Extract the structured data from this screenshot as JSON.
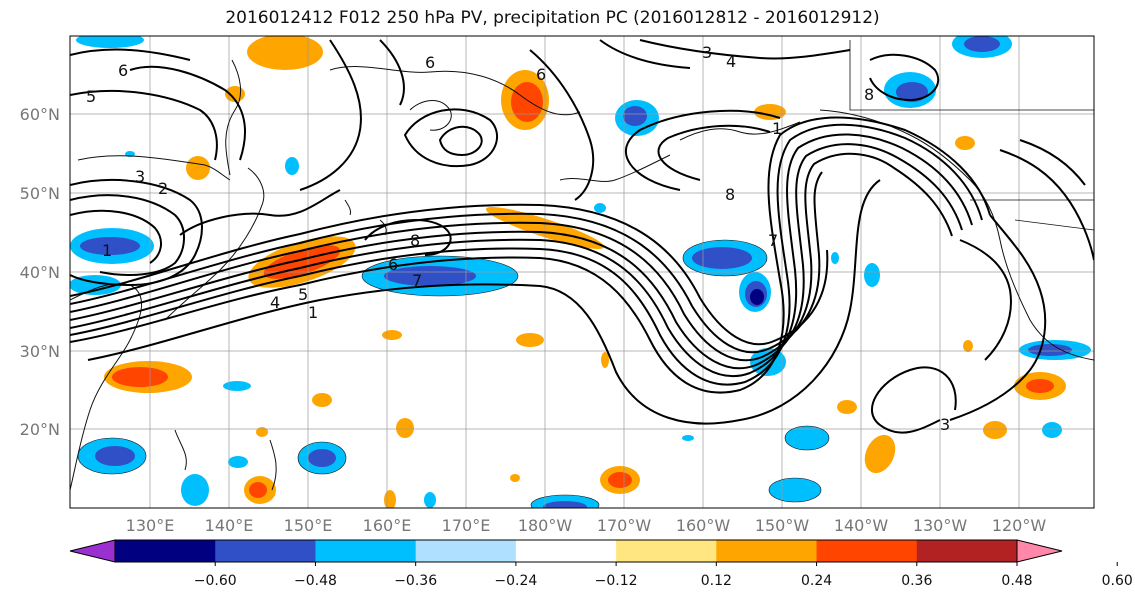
{
  "title": "2016012412 F012 250 hPa PV, precipitation PC (2016012812 - 2016012912)",
  "map": {
    "lon_ticks": [
      "130°E",
      "140°E",
      "150°E",
      "160°E",
      "170°E",
      "180°W",
      "170°W",
      "160°W",
      "150°W",
      "140°W",
      "130°W",
      "120°W"
    ],
    "lat_ticks": [
      "60°N",
      "50°N",
      "40°N",
      "30°N",
      "20°N"
    ],
    "contour_labels": [
      "6",
      "5",
      "3",
      "2",
      "1",
      "3",
      "4",
      "6",
      "8",
      "1",
      "8",
      "7",
      "6",
      "5",
      "4",
      "1",
      "7",
      "6",
      "3",
      "8"
    ]
  },
  "colorbar": {
    "ticks": [
      "−0.60",
      "−0.48",
      "−0.36",
      "−0.24",
      "−0.12",
      "0.12",
      "0.24",
      "0.36",
      "0.48",
      "0.60"
    ],
    "colors": [
      "#9b30d0",
      "#000080",
      "#3050c8",
      "#00bfff",
      "#b0e0ff",
      "#ffffff",
      "#ffe680",
      "#ffa500",
      "#ff4500",
      "#b22222",
      "#ff88aa"
    ]
  }
}
